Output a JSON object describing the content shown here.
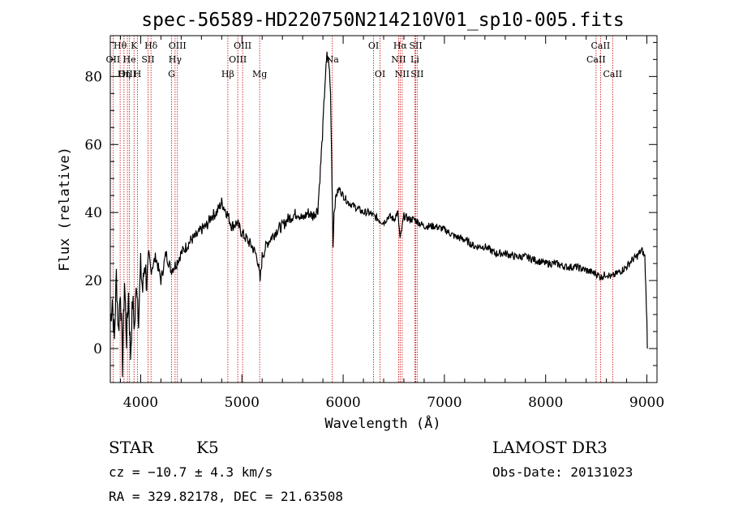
{
  "chart_data": {
    "type": "line",
    "title": "spec-56589-HD220750N214210V01_sp10-005.fits",
    "xlabel": "Wavelength (Å)",
    "ylabel": "Flux (relative)",
    "xlim": [
      3700,
      9100
    ],
    "ylim": [
      -10,
      92
    ],
    "x_ticks": [
      4000,
      5000,
      6000,
      7000,
      8000,
      9000
    ],
    "y_ticks": [
      0,
      20,
      40,
      60,
      80
    ],
    "grid": false,
    "series": [
      {
        "name": "flux",
        "points": [
          [
            3700,
            8
          ],
          [
            3720,
            15
          ],
          [
            3740,
            2
          ],
          [
            3760,
            22
          ],
          [
            3780,
            5
          ],
          [
            3800,
            18
          ],
          [
            3820,
            -5
          ],
          [
            3840,
            20
          ],
          [
            3860,
            3
          ],
          [
            3880,
            16
          ],
          [
            3900,
            -2
          ],
          [
            3920,
            14
          ],
          [
            3940,
            6
          ],
          [
            3960,
            20
          ],
          [
            3980,
            10
          ],
          [
            4000,
            24
          ],
          [
            4020,
            17
          ],
          [
            4040,
            26
          ],
          [
            4060,
            19
          ],
          [
            4080,
            25
          ],
          [
            4100,
            23
          ],
          [
            4150,
            27
          ],
          [
            4200,
            20
          ],
          [
            4250,
            28
          ],
          [
            4300,
            23
          ],
          [
            4350,
            25
          ],
          [
            4400,
            28
          ],
          [
            4450,
            30
          ],
          [
            4500,
            32
          ],
          [
            4550,
            33
          ],
          [
            4600,
            35
          ],
          [
            4650,
            36
          ],
          [
            4700,
            39
          ],
          [
            4750,
            40
          ],
          [
            4800,
            43
          ],
          [
            4850,
            40
          ],
          [
            4900,
            36
          ],
          [
            4950,
            37
          ],
          [
            5000,
            34
          ],
          [
            5050,
            32
          ],
          [
            5100,
            30
          ],
          [
            5150,
            27
          ],
          [
            5180,
            20
          ],
          [
            5200,
            27
          ],
          [
            5250,
            31
          ],
          [
            5300,
            33
          ],
          [
            5350,
            35
          ],
          [
            5400,
            36
          ],
          [
            5450,
            38
          ],
          [
            5500,
            39
          ],
          [
            5550,
            40
          ],
          [
            5600,
            38
          ],
          [
            5650,
            40
          ],
          [
            5700,
            39
          ],
          [
            5750,
            41
          ],
          [
            5780,
            55
          ],
          [
            5800,
            65
          ],
          [
            5820,
            78
          ],
          [
            5840,
            86
          ],
          [
            5860,
            84
          ],
          [
            5875,
            75
          ],
          [
            5890,
            50
          ],
          [
            5900,
            30
          ],
          [
            5910,
            40
          ],
          [
            5930,
            45
          ],
          [
            5960,
            47
          ],
          [
            6000,
            45
          ],
          [
            6050,
            43
          ],
          [
            6100,
            42
          ],
          [
            6150,
            41
          ],
          [
            6200,
            40
          ],
          [
            6250,
            40
          ],
          [
            6300,
            39
          ],
          [
            6350,
            38
          ],
          [
            6400,
            37
          ],
          [
            6450,
            39
          ],
          [
            6500,
            38
          ],
          [
            6540,
            40
          ],
          [
            6563,
            32
          ],
          [
            6600,
            39
          ],
          [
            6650,
            38
          ],
          [
            6700,
            38
          ],
          [
            6750,
            37
          ],
          [
            6800,
            36
          ],
          [
            6900,
            36
          ],
          [
            7000,
            35
          ],
          [
            7100,
            33
          ],
          [
            7200,
            32
          ],
          [
            7300,
            30
          ],
          [
            7400,
            30
          ],
          [
            7500,
            28
          ],
          [
            7600,
            28
          ],
          [
            7700,
            27
          ],
          [
            7800,
            27
          ],
          [
            7900,
            26
          ],
          [
            8000,
            25
          ],
          [
            8100,
            25
          ],
          [
            8200,
            24
          ],
          [
            8300,
            24
          ],
          [
            8400,
            23
          ],
          [
            8500,
            22
          ],
          [
            8550,
            21
          ],
          [
            8600,
            22
          ],
          [
            8650,
            21
          ],
          [
            8700,
            22
          ],
          [
            8750,
            23
          ],
          [
            8800,
            24
          ],
          [
            8850,
            26
          ],
          [
            8900,
            27
          ],
          [
            8950,
            29
          ],
          [
            8980,
            27
          ],
          [
            9000,
            8
          ],
          [
            9005,
            0
          ]
        ]
      }
    ],
    "spectral_lines": [
      {
        "label": "Hθ",
        "wavelength": 3797,
        "row": 0
      },
      {
        "label": "OII",
        "wavelength": 3727,
        "row": 1
      },
      {
        "label": "OIII",
        "wavelength": 3869,
        "row": 2
      },
      {
        "label": "He",
        "wavelength": 3889,
        "row": 1
      },
      {
        "label": "Hη",
        "wavelength": 3835,
        "row": 2
      },
      {
        "label": "K",
        "wavelength": 3934,
        "row": 0
      },
      {
        "label": "H",
        "wavelength": 3968,
        "row": 2
      },
      {
        "label": "SII",
        "wavelength": 4072,
        "row": 1
      },
      {
        "label": "Hδ",
        "wavelength": 4102,
        "row": 0
      },
      {
        "label": "OIII",
        "wavelength": 4363,
        "row": 0
      },
      {
        "label": "Hγ",
        "wavelength": 4340,
        "row": 1
      },
      {
        "label": "G",
        "wavelength": 4305,
        "row": 2
      },
      {
        "label": "Hβ",
        "wavelength": 4861,
        "row": 2
      },
      {
        "label": "OIII",
        "wavelength": 4959,
        "row": 1
      },
      {
        "label": "OIII",
        "wavelength": 5007,
        "row": 0
      },
      {
        "label": "Mg",
        "wavelength": 5175,
        "row": 2
      },
      {
        "label": "Na",
        "wavelength": 5893,
        "row": 1
      },
      {
        "label": "OI",
        "wavelength": 6300,
        "row": 0
      },
      {
        "label": "OI",
        "wavelength": 6364,
        "row": 2
      },
      {
        "label": "Hα",
        "wavelength": 6563,
        "row": 0
      },
      {
        "label": "NII",
        "wavelength": 6548,
        "row": 1
      },
      {
        "label": "NII",
        "wavelength": 6583,
        "row": 2
      },
      {
        "label": "SII",
        "wavelength": 6717,
        "row": 0
      },
      {
        "label": "SII",
        "wavelength": 6731,
        "row": 2
      },
      {
        "label": "Li",
        "wavelength": 6708,
        "row": 1
      },
      {
        "label": "CaII",
        "wavelength": 8498,
        "row": 1
      },
      {
        "label": "CaII",
        "wavelength": 8542,
        "row": 0
      },
      {
        "label": "CaII",
        "wavelength": 8662,
        "row": 2
      }
    ]
  },
  "footer": {
    "object_class": "STAR",
    "subclass": "K5",
    "survey": "LAMOST DR3",
    "cz": "cz = −10.7 ± 4.3 km/s",
    "obs_date": "Obs-Date: 20131023",
    "coords": "RA = 329.82178, DEC =  21.63508"
  },
  "colors": {
    "spectrum": "#000000",
    "line_markers": "#cc0000",
    "axes": "#000000"
  }
}
